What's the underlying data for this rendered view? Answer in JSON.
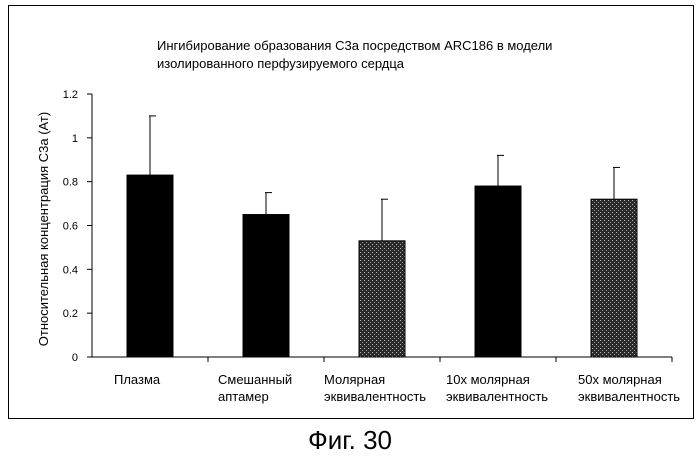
{
  "chart_data": {
    "type": "bar",
    "title": "Ингибирование образования C3a посредством ARC186 в модели изолированного перфузируемого сердца",
    "title_lines": [
      "Ингибирование образования C3a посредством ARC186 в модели",
      "изолированного перфузируемого сердца"
    ],
    "ylabel": "Относительная концентрация C3a    (Ат)",
    "xlabel": "",
    "categories": [
      "Плазма",
      "Смешанный аптамер",
      "Молярная эквивалентность",
      "10x молярная эквивалентность",
      "50x молярная эквивалентность"
    ],
    "category_lines": [
      [
        "Плазма"
      ],
      [
        "Смешанный",
        "аптамер"
      ],
      [
        "Молярная",
        "эквивалентность"
      ],
      [
        "10x молярная",
        "эквивалентность"
      ],
      [
        "50x молярная",
        "эквивалентность"
      ]
    ],
    "values": [
      0.83,
      0.65,
      0.53,
      0.78,
      0.72
    ],
    "error_upper": [
      0.27,
      0.1,
      0.19,
      0.14,
      0.145
    ],
    "fill_style": [
      "solid",
      "solid",
      "stipple",
      "solid",
      "stipple"
    ],
    "ylim": [
      0,
      1.2
    ],
    "yticks": [
      0,
      0.2,
      0.4,
      0.6,
      0.8,
      1,
      1.2
    ],
    "ytick_labels": [
      "0",
      "0.2",
      "0.4",
      "0.6",
      "0.8",
      "1",
      "1.2"
    ],
    "grid": false,
    "legend": "none"
  },
  "caption": "Фиг. 30",
  "colors": {
    "bar_solid": "#000000",
    "bar_stipple": "#2a2a2a",
    "axis": "#000000"
  }
}
